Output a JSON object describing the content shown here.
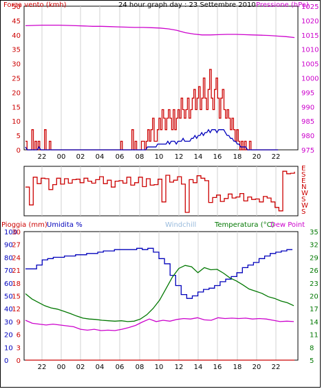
{
  "colors": {
    "red": "#cc0000",
    "blue": "#0000bb",
    "magenta": "#cc00cc",
    "green": "#007700",
    "light_blue": "#99bbdd",
    "grid": "#d0d0d0"
  },
  "chart_data": [
    {
      "type": "line",
      "title": "24 hour graph day : 23 Settembre 2010",
      "left_axis_label": "Forza vento (kmh)",
      "right_axis_label": "Pressione (hPa)",
      "x_ticks": [
        "22",
        "00",
        "02",
        "04",
        "06",
        "08",
        "10",
        "12",
        "14",
        "16",
        "18",
        "20",
        "22"
      ],
      "ylim_left": [
        0,
        50
      ],
      "y_ticks_left": [
        "0",
        "5",
        "10",
        "15",
        "20",
        "25",
        "30",
        "35",
        "40",
        "45",
        "50"
      ],
      "ylim_right": [
        975,
        1025
      ],
      "y_ticks_right": [
        "975",
        "980",
        "985",
        "990",
        "995",
        "1000",
        "1005",
        "1010",
        "1015",
        "1020",
        "1025"
      ],
      "series": [
        {
          "color": "red",
          "axis": "left",
          "values": [
            3,
            0,
            0,
            0,
            7,
            0,
            3,
            0,
            3,
            0,
            0,
            0,
            7,
            0,
            0,
            3,
            0,
            0,
            0,
            0,
            0,
            0,
            0,
            0,
            0,
            0,
            0,
            0,
            0,
            0,
            0,
            0,
            0,
            0,
            0,
            0,
            0,
            0,
            0,
            0,
            0,
            0,
            0,
            0,
            0,
            0,
            0,
            0,
            0,
            0,
            0,
            0,
            0,
            0,
            0,
            0,
            0,
            0,
            0,
            0,
            3,
            0,
            0,
            0,
            0,
            0,
            0,
            7,
            0,
            3,
            0,
            0,
            0,
            3,
            3,
            0,
            3,
            7,
            3,
            7,
            11,
            3,
            3,
            7,
            11,
            7,
            14,
            11,
            7,
            11,
            14,
            11,
            7,
            14,
            7,
            11,
            14,
            11,
            18,
            14,
            11,
            14,
            18,
            11,
            14,
            18,
            21,
            14,
            18,
            22,
            14,
            18,
            25,
            18,
            14,
            21,
            28,
            18,
            14,
            21,
            25,
            18,
            11,
            18,
            21,
            14,
            11,
            14,
            11,
            7,
            11,
            7,
            3,
            7,
            3,
            0,
            3,
            0,
            3,
            0,
            0,
            3,
            0,
            0,
            0,
            0,
            0,
            0,
            0,
            0,
            0,
            0,
            0,
            0,
            0,
            0,
            0,
            0,
            0,
            0
          ]
        },
        {
          "color": "blue",
          "axis": "left",
          "values": [
            1,
            0,
            0,
            0,
            0,
            0,
            0,
            0,
            1,
            0,
            0,
            0,
            0,
            0,
            0,
            0,
            0,
            0,
            0,
            0,
            0,
            0,
            0,
            0,
            0,
            0,
            0,
            0,
            0,
            0,
            0,
            0,
            0,
            0,
            0,
            0,
            0,
            0,
            0,
            0,
            0,
            0,
            0,
            0,
            0,
            0,
            0,
            0,
            0,
            0,
            0,
            0,
            0,
            0,
            0,
            0,
            0,
            0,
            0,
            0,
            0,
            0,
            0,
            0,
            0,
            0,
            0,
            0,
            0,
            0,
            0,
            0,
            1,
            1,
            1,
            1,
            1,
            1,
            2,
            2,
            2,
            2,
            2,
            2,
            3,
            2,
            3,
            3,
            3,
            2,
            3,
            3,
            3,
            4,
            3,
            3,
            3,
            3,
            4,
            4,
            5,
            4,
            5,
            5,
            6,
            5,
            6,
            6,
            7,
            6,
            7,
            7,
            7,
            6,
            7,
            7,
            7,
            7,
            6,
            5,
            5,
            4,
            4,
            3,
            3,
            2,
            2,
            1,
            1,
            1,
            1,
            0,
            0,
            0,
            0,
            0,
            0,
            0,
            0,
            0,
            0,
            0,
            0,
            0,
            0,
            0,
            0,
            0,
            0,
            0
          ]
        },
        {
          "color": "magenta",
          "axis": "right",
          "values": [
            1018.2,
            1018.3,
            1018.4,
            1018.4,
            1018.4,
            1018.3,
            1018.2,
            1018.1,
            1018.0,
            1018.0,
            1017.9,
            1017.8,
            1017.7,
            1017.6,
            1017.6,
            1017.5,
            1017.4,
            1017.1,
            1016.6,
            1015.8,
            1015.3,
            1015.0,
            1015.0,
            1015.1,
            1015.2,
            1015.2,
            1015.1,
            1015.0,
            1014.9,
            1014.8,
            1014.6,
            1014.4,
            1014.1
          ]
        }
      ]
    },
    {
      "type": "line",
      "right_labels": [
        "E",
        "S",
        "E",
        "N",
        "W",
        "S",
        "W",
        "S"
      ],
      "series": [
        {
          "color": "red",
          "values": [
            0.42,
            0.78,
            0.22,
            0.35,
            0.24,
            0.25,
            0.47,
            0.37,
            0.24,
            0.36,
            0.25,
            0.34,
            0.27,
            0.26,
            0.33,
            0.24,
            0.3,
            0.34,
            0.27,
            0.21,
            0.35,
            0.28,
            0.42,
            0.3,
            0.29,
            0.34,
            0.22,
            0.38,
            0.33,
            0.22,
            0.41,
            0.25,
            0.38,
            0.37,
            0.26,
            0.72,
            0.18,
            0.32,
            0.28,
            0.21,
            0.36,
            0.93,
            0.27,
            0.33,
            0.19,
            0.24,
            0.29,
            0.73,
            0.63,
            0.58,
            0.71,
            0.65,
            0.56,
            0.64,
            0.62,
            0.55,
            0.7,
            0.62,
            0.67,
            0.66,
            0.72,
            0.61,
            0.64,
            0.72,
            0.83,
            0.9,
            0.1,
            0.15,
            0.14,
            0.11
          ]
        }
      ]
    },
    {
      "type": "line",
      "labels_top": [
        "Pioggia (mm)",
        "Umidita %",
        "Windchill",
        "Temperatura (°C)",
        "Dew Point"
      ],
      "x_ticks": [
        "22",
        "00",
        "02",
        "04",
        "06",
        "08",
        "10",
        "12",
        "14",
        "16",
        "18",
        "20",
        "22"
      ],
      "y_ticks_humidity": [
        "0",
        "10",
        "20",
        "30",
        "40",
        "50",
        "60",
        "70",
        "80",
        "90",
        "100"
      ],
      "y_ticks_rain": [
        "0",
        "3",
        "6",
        "9",
        "12",
        "15",
        "18",
        "21",
        "24",
        "27",
        "30"
      ],
      "ylim_temp": [
        5,
        35
      ],
      "y_ticks_temp": [
        "5",
        "8",
        "11",
        "14",
        "17",
        "20",
        "23",
        "26",
        "29",
        "32",
        "35"
      ],
      "series": [
        {
          "color": "blue",
          "axis": "humidity",
          "values": [
            71,
            71,
            74,
            78,
            79,
            80,
            80,
            81,
            81,
            82,
            82,
            83,
            83,
            84,
            85,
            85,
            86,
            86,
            86,
            86,
            87,
            86,
            87,
            84,
            79,
            75,
            66,
            58,
            51,
            48,
            50,
            53,
            55,
            56,
            58,
            61,
            63,
            65,
            68,
            72,
            74,
            76,
            79,
            81,
            83,
            84,
            85,
            86,
            86
          ]
        },
        {
          "color": "green",
          "axis": "temp",
          "values": [
            20.5,
            19.3,
            18.5,
            17.7,
            17.2,
            16.9,
            16.4,
            15.9,
            15.3,
            14.8,
            14.6,
            14.5,
            14.3,
            14.2,
            14.1,
            14.2,
            14.0,
            14.1,
            14.6,
            15.6,
            17.1,
            19.0,
            21.7,
            24.4,
            26.4,
            27.1,
            26.8,
            25.4,
            26.6,
            26.1,
            26.2,
            25.3,
            24.2,
            23.5,
            22.6,
            21.6,
            21.1,
            20.6,
            19.8,
            19.4,
            18.8,
            18.4,
            17.7
          ]
        },
        {
          "color": "magenta",
          "axis": "temp",
          "values": [
            14.3,
            13.6,
            13.4,
            13.2,
            13.4,
            13.2,
            13.0,
            12.8,
            12.2,
            12.0,
            12.2,
            11.9,
            12.0,
            11.9,
            12.2,
            12.6,
            13.1,
            13.9,
            14.6,
            14.0,
            14.3,
            14.1,
            14.5,
            14.7,
            14.6,
            14.9,
            14.4,
            14.3,
            14.9,
            14.7,
            14.8,
            14.7,
            14.8,
            14.6,
            14.7,
            14.6,
            14.3,
            14.0,
            14.1,
            14.0
          ]
        },
        {
          "color": "red",
          "axis": "rain",
          "values": [
            0,
            0,
            0,
            0,
            0,
            0,
            0,
            0,
            0,
            0
          ]
        }
      ]
    }
  ]
}
